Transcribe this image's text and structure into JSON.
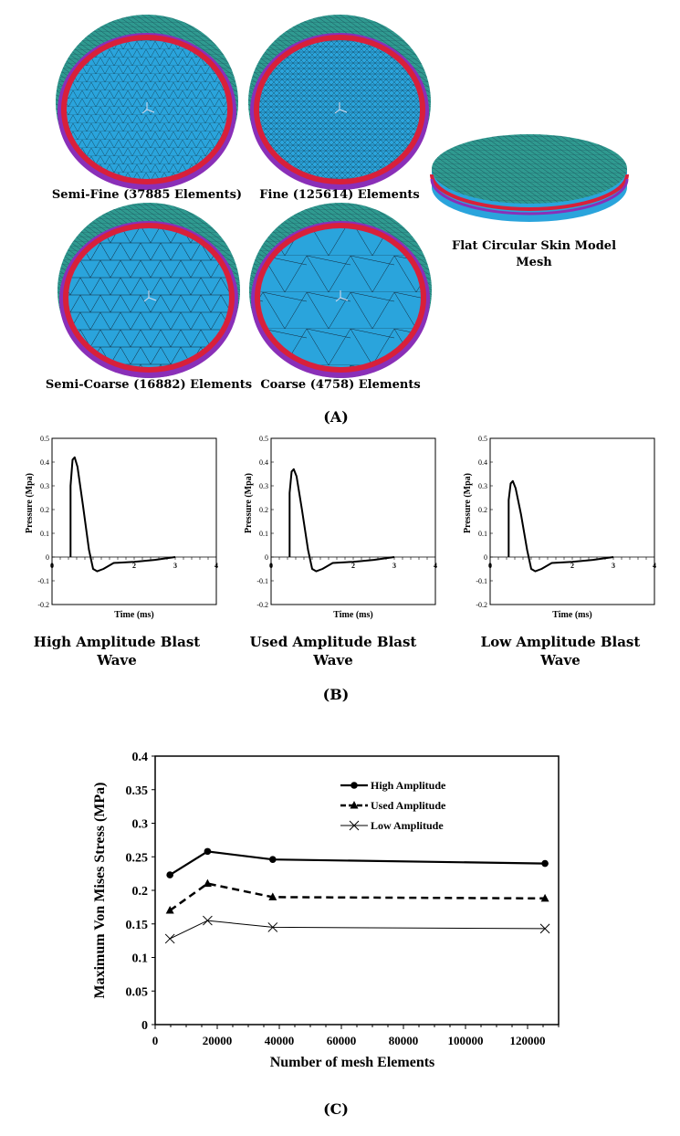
{
  "panel_a": {
    "label": "(A)",
    "meshes": [
      {
        "caption": "Semi-Fine (37885 Elements)"
      },
      {
        "caption": "Fine (125614) Elements"
      },
      {
        "caption": "Semi-Coarse (16882) Elements"
      },
      {
        "caption": "Coarse (4758) Elements"
      }
    ],
    "flat_model": {
      "caption_line1": "Flat Circular Skin Model",
      "caption_line2": "Mesh"
    },
    "colors": {
      "face": "#2aa4dc",
      "rim_red": "#d8203a",
      "rim_purple": "#8a2fb8",
      "dome": "#2f9a90"
    }
  },
  "panel_b": {
    "label": "(B)",
    "captions": [
      {
        "line1": "High Amplitude Blast",
        "line2": "Wave"
      },
      {
        "line1": "Used Amplitude Blast",
        "line2": "Wave"
      },
      {
        "line1": "Low Amplitude Blast",
        "line2": "Wave"
      }
    ]
  },
  "panel_c": {
    "label": "(C)"
  },
  "chart_data": [
    {
      "type": "line",
      "xlabel": "Time (ms)",
      "ylabel": "Pressure (Mpa)",
      "xlim": [
        0,
        4
      ],
      "ylim": [
        -0.2,
        0.5
      ],
      "xticks": [
        "0",
        "2",
        "3",
        "4"
      ],
      "yticks": [
        "0.5",
        "0.4",
        "0.3",
        "0.2",
        "0.1",
        "0",
        "-0.1",
        "-0.2"
      ],
      "x": [
        0.45,
        0.45,
        0.5,
        0.55,
        0.62,
        0.75,
        0.9,
        1.0,
        1.1,
        1.25,
        1.5,
        2.0,
        2.5,
        3.0
      ],
      "y": [
        0,
        0.3,
        0.41,
        0.42,
        0.38,
        0.22,
        0.03,
        -0.05,
        -0.06,
        -0.05,
        -0.025,
        -0.02,
        -0.012,
        0
      ]
    },
    {
      "type": "line",
      "xlabel": "Time (ms)",
      "ylabel": "Pressure (Mpa)",
      "xlim": [
        0,
        4
      ],
      "ylim": [
        -0.2,
        0.5
      ],
      "xticks": [
        "0",
        "2",
        "3",
        "4"
      ],
      "yticks": [
        "0.5",
        "0.4",
        "0.3",
        "0.2",
        "0.1",
        "0",
        "-0.1",
        "-0.2"
      ],
      "x": [
        0.45,
        0.45,
        0.5,
        0.55,
        0.62,
        0.75,
        0.9,
        1.0,
        1.1,
        1.25,
        1.5,
        2.0,
        2.5,
        3.0
      ],
      "y": [
        0,
        0.27,
        0.36,
        0.37,
        0.34,
        0.2,
        0.03,
        -0.05,
        -0.06,
        -0.05,
        -0.025,
        -0.02,
        -0.012,
        0
      ]
    },
    {
      "type": "line",
      "xlabel": "Time (ms)",
      "ylabel": "Pressure (Mpa)",
      "xlim": [
        0,
        4
      ],
      "ylim": [
        -0.2,
        0.5
      ],
      "xticks": [
        "0",
        "2",
        "3",
        "4"
      ],
      "yticks": [
        "0.5",
        "0.4",
        "0.3",
        "0.2",
        "0.1",
        "0",
        "-0.1",
        "-0.2"
      ],
      "x": [
        0.45,
        0.45,
        0.5,
        0.55,
        0.62,
        0.75,
        0.9,
        1.0,
        1.1,
        1.25,
        1.5,
        2.0,
        2.5,
        3.0
      ],
      "y": [
        0,
        0.24,
        0.31,
        0.32,
        0.29,
        0.18,
        0.03,
        -0.05,
        -0.06,
        -0.05,
        -0.025,
        -0.02,
        -0.012,
        0
      ]
    },
    {
      "type": "line",
      "xlabel": "Number of mesh Elements",
      "ylabel": "Maximum Von Mises Stress (MPa)",
      "xlim": [
        0,
        130000
      ],
      "ylim": [
        0,
        0.4
      ],
      "xticks": [
        "0",
        "20000",
        "40000",
        "60000",
        "80000",
        "100000",
        "120000"
      ],
      "yticks": [
        "0.4",
        "0.35",
        "0.3",
        "0.25",
        "0.2",
        "0.15",
        "0.1",
        "0.05",
        "0"
      ],
      "legend": "top-right",
      "x": [
        4758,
        16882,
        37885,
        125614
      ],
      "series": [
        {
          "name": "High Amplitude",
          "marker": "circle",
          "line": "solid-thick",
          "values": [
            0.223,
            0.258,
            0.246,
            0.24
          ]
        },
        {
          "name": "Used Amplitude",
          "marker": "triangle",
          "line": "dashed",
          "values": [
            0.17,
            0.21,
            0.19,
            0.188
          ]
        },
        {
          "name": "Low Amplitude",
          "marker": "x",
          "line": "solid-thin",
          "values": [
            0.128,
            0.155,
            0.145,
            0.143
          ]
        }
      ]
    }
  ]
}
